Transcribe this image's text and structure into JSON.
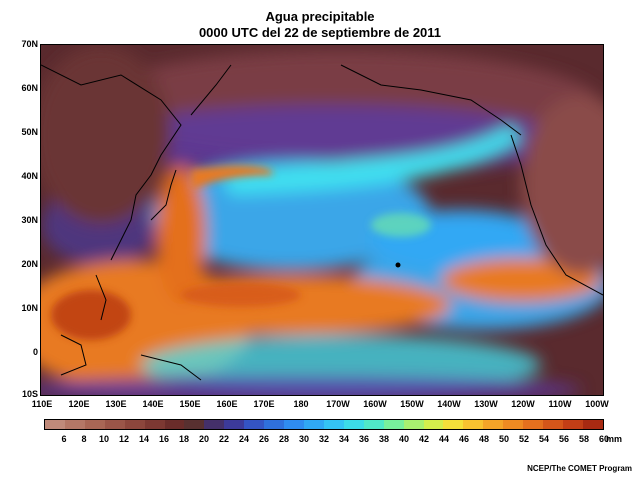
{
  "title": {
    "line1": "Agua precipitable",
    "line2": "0000 UTC del 22 de septiembre de 2011"
  },
  "map": {
    "lat_labels": [
      "70N",
      "60N",
      "50N",
      "40N",
      "30N",
      "20N",
      "10N",
      "0",
      "10S"
    ],
    "lon_labels": [
      "110E",
      "120E",
      "130E",
      "140E",
      "150E",
      "160E",
      "170E",
      "180",
      "170W",
      "160W",
      "150W",
      "140W",
      "130W",
      "120W",
      "110W",
      "100W"
    ],
    "colors": {
      "very_dry": "#5a2a2e",
      "dry": "#8a4b4a",
      "ocean_dry": "#5a3aa8",
      "moist_blue": "#3aa6e8",
      "cyan": "#40e0f0",
      "moist_orange": "#e87a20",
      "wet_red": "#b83a10",
      "coast": "#000000"
    }
  },
  "colorbar": {
    "labels": [
      "6",
      "8",
      "10",
      "12",
      "14",
      "16",
      "18",
      "20",
      "22",
      "24",
      "26",
      "28",
      "30",
      "32",
      "34",
      "36",
      "38",
      "40",
      "42",
      "44",
      "46",
      "48",
      "50",
      "52",
      "54",
      "56",
      "58",
      "60"
    ],
    "unit": "mm",
    "colors": [
      "#c08a7a",
      "#b47766",
      "#a86655",
      "#9a5548",
      "#8c463c",
      "#7c3832",
      "#6a2c2a",
      "#583030",
      "#44306a",
      "#3c3a9a",
      "#3454c4",
      "#2f70dc",
      "#2f8cf0",
      "#30a8f4",
      "#34c4f4",
      "#3cdce8",
      "#50e8c8",
      "#78f09c",
      "#a8f070",
      "#d4ee4c",
      "#f4e03a",
      "#f8c230",
      "#f4a428",
      "#ee8a22",
      "#e4701e",
      "#d4561a",
      "#c23e16",
      "#a82a12"
    ]
  },
  "credit": "NCEP/The COMET Program"
}
